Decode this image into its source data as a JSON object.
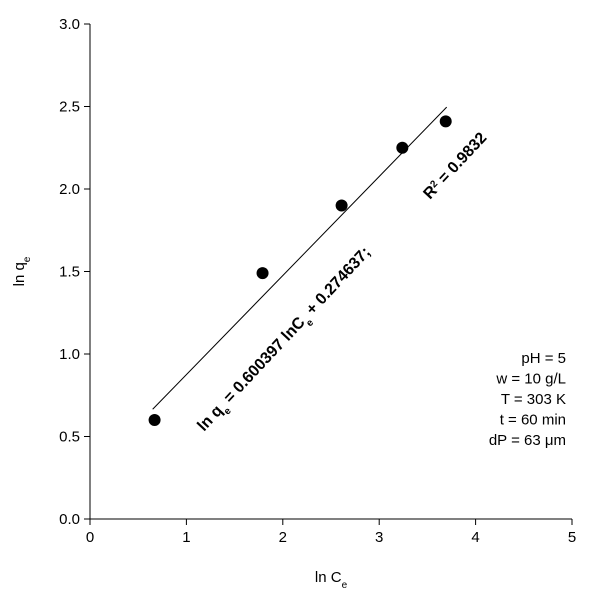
{
  "chart_data": {
    "type": "scatter",
    "x_label": [
      "ln C",
      "e"
    ],
    "y_label": [
      "ln q",
      "e"
    ],
    "xlim": [
      0,
      5
    ],
    "xticks": [
      0,
      1,
      2,
      3,
      4,
      5
    ],
    "ylim": [
      0,
      3
    ],
    "yticks": [
      {
        "value": 0,
        "label": "0.0"
      },
      0.5,
      {
        "value": 1,
        "label": "1.0"
      },
      1.5,
      {
        "value": 2,
        "label": "2.0"
      },
      2.5,
      {
        "value": 3,
        "label": "3.0"
      }
    ],
    "series": [
      {
        "name": null,
        "color": "#000000",
        "x": [
          0.67,
          1.79,
          2.61,
          3.24,
          3.69
        ],
        "values": [
          0.6,
          1.49,
          1.9,
          2.25,
          2.41
        ]
      }
    ],
    "fit": {
      "color": "#000000",
      "x": [
        0.65,
        3.7
      ],
      "values": [
        0.665,
        2.496
      ]
    },
    "equation": [
      "ln q",
      "e",
      " = 0.600397 lnC",
      "e",
      " + 0.274637;"
    ],
    "r_squared": [
      "R",
      "2",
      " = 0.9832"
    ],
    "conditions": [
      "pH = 5",
      "w = 10 g/L",
      "T = 303 K",
      "t = 60 min",
      "dP = 63 μm"
    ]
  }
}
